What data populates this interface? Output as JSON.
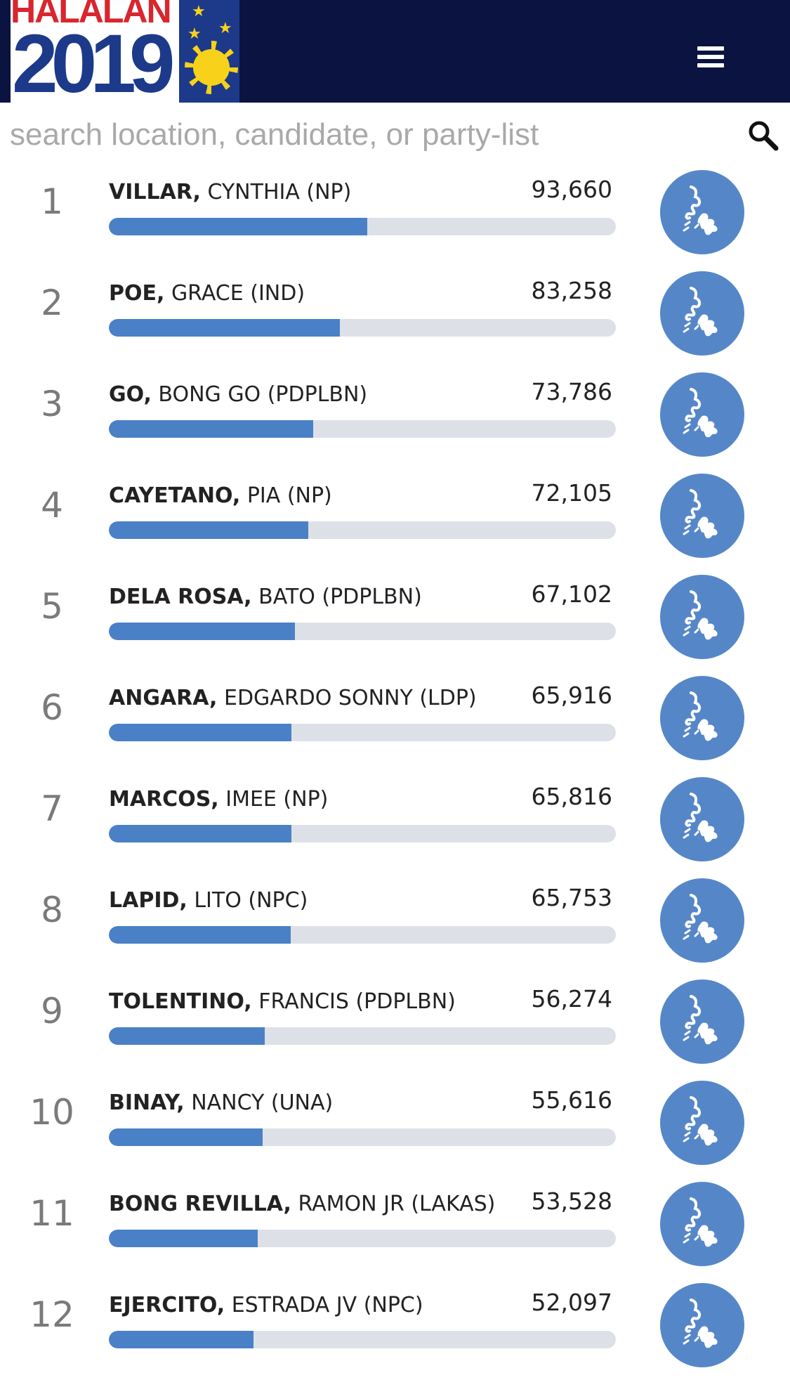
{
  "header": {
    "logo_top": "HALALAN",
    "logo_year": "2019"
  },
  "search": {
    "placeholder": "search location, candidate, or party-list"
  },
  "colors": {
    "header_bg": "#0b1340",
    "bar_fill": "#4a80c6",
    "bar_track": "#dde1e7",
    "map_button": "#5587c8"
  },
  "icons": {
    "menu": "hamburger-menu-icon",
    "search": "magnifier-icon",
    "map": "philippines-map-icon"
  },
  "candidates": [
    {
      "rank": "1",
      "last": "VILLAR,",
      "first": "CYNTHIA (NP)",
      "votes": "93,660",
      "share": 0.51
    },
    {
      "rank": "2",
      "last": "POE,",
      "first": "GRACE (IND)",
      "votes": "83,258",
      "share": 0.455
    },
    {
      "rank": "3",
      "last": "GO,",
      "first": "BONG GO (PDPLBN)",
      "votes": "73,786",
      "share": 0.403
    },
    {
      "rank": "4",
      "last": "CAYETANO,",
      "first": "PIA (NP)",
      "votes": "72,105",
      "share": 0.394
    },
    {
      "rank": "5",
      "last": "DELA ROSA,",
      "first": "BATO (PDPLBN)",
      "votes": "67,102",
      "share": 0.367
    },
    {
      "rank": "6",
      "last": "ANGARA,",
      "first": "EDGARDO SONNY (LDP)",
      "votes": "65,916",
      "share": 0.36
    },
    {
      "rank": "7",
      "last": "MARCOS,",
      "first": "IMEE (NP)",
      "votes": "65,816",
      "share": 0.36
    },
    {
      "rank": "8",
      "last": "LAPID,",
      "first": "LITO (NPC)",
      "votes": "65,753",
      "share": 0.359
    },
    {
      "rank": "9",
      "last": "TOLENTINO,",
      "first": "FRANCIS (PDPLBN)",
      "votes": "56,274",
      "share": 0.308
    },
    {
      "rank": "10",
      "last": "BINAY,",
      "first": "NANCY (UNA)",
      "votes": "55,616",
      "share": 0.304
    },
    {
      "rank": "11",
      "last": "BONG REVILLA,",
      "first": "RAMON JR (LAKAS)",
      "votes": "53,528",
      "share": 0.293
    },
    {
      "rank": "12",
      "last": "EJERCITO,",
      "first": "ESTRADA JV (NPC)",
      "votes": "52,097",
      "share": 0.285
    }
  ]
}
